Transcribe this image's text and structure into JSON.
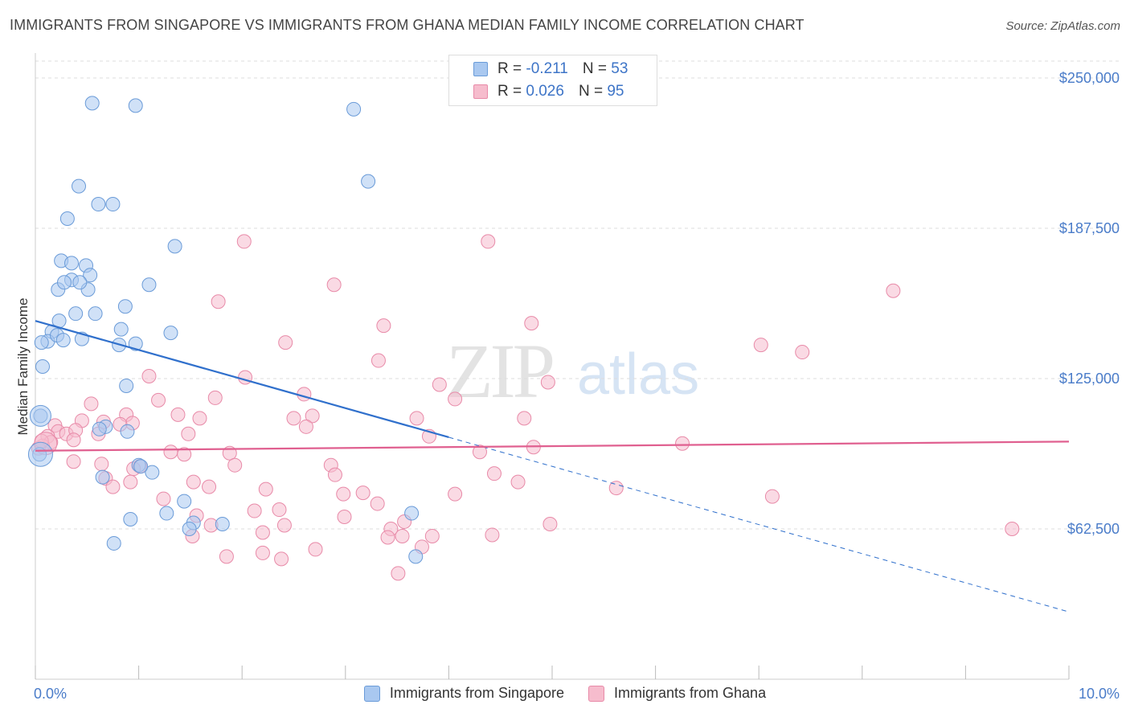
{
  "header": {
    "title": "IMMIGRANTS FROM SINGAPORE VS IMMIGRANTS FROM GHANA MEDIAN FAMILY INCOME CORRELATION CHART",
    "source": "Source: ZipAtlas.com"
  },
  "watermark": {
    "zip": "ZIP",
    "atlas": "atlas"
  },
  "legend": {
    "singapore": {
      "r_label": "R =",
      "r_value": "-0.211",
      "n_label": "N =",
      "n_value": "53"
    },
    "ghana": {
      "r_label": "R =",
      "r_value": "0.026",
      "n_label": "N =",
      "n_value": "95"
    }
  },
  "colors": {
    "singapore_fill": "#a9c8f0",
    "singapore_stroke": "#6a9bd8",
    "singapore_line": "#3070cc",
    "ghana_fill": "#f6bccd",
    "ghana_stroke": "#e88aa8",
    "ghana_line": "#e06090",
    "tick_label": "#4a7cc9",
    "grid": "#dddddd"
  },
  "chart_data": {
    "type": "scatter",
    "title": "IMMIGRANTS FROM SINGAPORE VS IMMIGRANTS FROM GHANA MEDIAN FAMILY INCOME CORRELATION CHART",
    "xlabel": "",
    "ylabel": "Median Family Income",
    "x_tick_labels": [
      "0.0%",
      "10.0%"
    ],
    "y_tick_labels": [
      "$62,500",
      "$125,000",
      "$187,500",
      "$250,000"
    ],
    "y_ticks": [
      62500,
      125000,
      187500,
      250000
    ],
    "xlim": [
      0,
      10
    ],
    "ylim": [
      0,
      257000
    ],
    "grid": true,
    "legend_position": "top-center",
    "series": [
      {
        "name": "Immigrants from Singapore",
        "r": -0.211,
        "n": 53,
        "trend": {
          "x0": 0,
          "y0": 149000,
          "x_solid_end": 4.0,
          "x1": 10,
          "y1": 28000
        },
        "points": [
          [
            0.55,
            239500
          ],
          [
            0.97,
            238500
          ],
          [
            3.08,
            237000
          ],
          [
            0.42,
            205000
          ],
          [
            3.22,
            207000
          ],
          [
            0.61,
            197500
          ],
          [
            0.75,
            197500
          ],
          [
            0.31,
            191500
          ],
          [
            1.35,
            180000
          ],
          [
            0.25,
            174000
          ],
          [
            0.35,
            173000
          ],
          [
            0.49,
            172000
          ],
          [
            0.53,
            168000
          ],
          [
            0.35,
            166000
          ],
          [
            0.51,
            162000
          ],
          [
            0.22,
            162000
          ],
          [
            0.28,
            165000
          ],
          [
            0.43,
            165000
          ],
          [
            1.1,
            164000
          ],
          [
            0.87,
            155000
          ],
          [
            0.39,
            152000
          ],
          [
            0.58,
            152000
          ],
          [
            0.23,
            149000
          ],
          [
            0.83,
            145500
          ],
          [
            0.16,
            144500
          ],
          [
            0.12,
            140500
          ],
          [
            0.21,
            143000
          ],
          [
            0.45,
            141500
          ],
          [
            0.97,
            139500
          ],
          [
            1.31,
            144000
          ],
          [
            0.81,
            139000
          ],
          [
            0.06,
            140000
          ],
          [
            0.07,
            130000
          ],
          [
            0.88,
            122000
          ],
          [
            0.05,
            109500
          ],
          [
            0.68,
            105000
          ],
          [
            0.62,
            104000
          ],
          [
            0.89,
            103000
          ],
          [
            0.04,
            93500
          ],
          [
            1.0,
            89000
          ],
          [
            1.13,
            86000
          ],
          [
            0.65,
            84000
          ],
          [
            1.44,
            74000
          ],
          [
            1.27,
            69000
          ],
          [
            1.53,
            65000
          ],
          [
            0.92,
            66500
          ],
          [
            1.49,
            62500
          ],
          [
            1.81,
            64500
          ],
          [
            3.64,
            69000
          ],
          [
            0.76,
            56500
          ],
          [
            3.68,
            51000
          ],
          [
            1.02,
            88500
          ],
          [
            0.27,
            141000
          ]
        ]
      },
      {
        "name": "Immigrants from Ghana",
        "r": 0.026,
        "n": 95,
        "trend": {
          "x0": 0,
          "y0": 95000,
          "x1": 10,
          "y1": 98800
        },
        "points": [
          [
            2.02,
            182000
          ],
          [
            4.38,
            182000
          ],
          [
            2.89,
            164000
          ],
          [
            8.3,
            161500
          ],
          [
            1.77,
            157000
          ],
          [
            4.8,
            148000
          ],
          [
            3.37,
            147000
          ],
          [
            2.42,
            140000
          ],
          [
            7.02,
            139000
          ],
          [
            7.42,
            136000
          ],
          [
            3.32,
            132500
          ],
          [
            1.1,
            126000
          ],
          [
            2.03,
            125500
          ],
          [
            3.91,
            122500
          ],
          [
            4.96,
            123500
          ],
          [
            2.6,
            118500
          ],
          [
            1.74,
            117000
          ],
          [
            4.06,
            116500
          ],
          [
            1.19,
            116000
          ],
          [
            0.54,
            114500
          ],
          [
            1.38,
            110000
          ],
          [
            1.59,
            108500
          ],
          [
            2.5,
            108500
          ],
          [
            2.68,
            109500
          ],
          [
            3.69,
            108500
          ],
          [
            4.73,
            108500
          ],
          [
            0.88,
            110000
          ],
          [
            0.94,
            106500
          ],
          [
            0.82,
            106000
          ],
          [
            0.66,
            107000
          ],
          [
            0.45,
            107500
          ],
          [
            0.19,
            105500
          ],
          [
            0.22,
            103000
          ],
          [
            0.3,
            102000
          ],
          [
            0.39,
            103500
          ],
          [
            0.61,
            102000
          ],
          [
            1.48,
            102000
          ],
          [
            2.62,
            105000
          ],
          [
            3.81,
            101000
          ],
          [
            0.12,
            101000
          ],
          [
            0.15,
            98500
          ],
          [
            0.07,
            97000
          ],
          [
            0.03,
            96000
          ],
          [
            0.06,
            99000
          ],
          [
            1.31,
            94500
          ],
          [
            1.44,
            93500
          ],
          [
            1.88,
            94000
          ],
          [
            4.3,
            94500
          ],
          [
            4.82,
            96500
          ],
          [
            6.26,
            98000
          ],
          [
            0.37,
            90500
          ],
          [
            0.64,
            89500
          ],
          [
            1.01,
            88500
          ],
          [
            1.93,
            89000
          ],
          [
            2.86,
            89000
          ],
          [
            0.95,
            87500
          ],
          [
            2.9,
            85000
          ],
          [
            4.44,
            85500
          ],
          [
            0.68,
            83500
          ],
          [
            1.53,
            82000
          ],
          [
            0.92,
            82000
          ],
          [
            4.67,
            82000
          ],
          [
            0.75,
            80000
          ],
          [
            1.68,
            80000
          ],
          [
            2.23,
            79000
          ],
          [
            5.62,
            79500
          ],
          [
            2.98,
            77000
          ],
          [
            3.17,
            77500
          ],
          [
            4.06,
            77000
          ],
          [
            1.24,
            75000
          ],
          [
            7.13,
            76000
          ],
          [
            3.31,
            73000
          ],
          [
            2.12,
            70000
          ],
          [
            2.36,
            70500
          ],
          [
            1.56,
            68000
          ],
          [
            2.99,
            67500
          ],
          [
            3.57,
            65500
          ],
          [
            4.98,
            64500
          ],
          [
            1.7,
            64000
          ],
          [
            2.41,
            64000
          ],
          [
            3.44,
            62500
          ],
          [
            9.45,
            62500
          ],
          [
            2.2,
            61000
          ],
          [
            3.55,
            59500
          ],
          [
            4.42,
            60000
          ],
          [
            3.84,
            59500
          ],
          [
            3.41,
            59000
          ],
          [
            1.52,
            59500
          ],
          [
            3.74,
            55000
          ],
          [
            2.71,
            54000
          ],
          [
            2.2,
            52500
          ],
          [
            1.85,
            51000
          ],
          [
            2.38,
            50000
          ],
          [
            3.51,
            44000
          ],
          [
            0.37,
            99500
          ]
        ]
      }
    ]
  },
  "bottom_legend": [
    {
      "label": "Immigrants from Singapore"
    },
    {
      "label": "Immigrants from Ghana"
    }
  ]
}
